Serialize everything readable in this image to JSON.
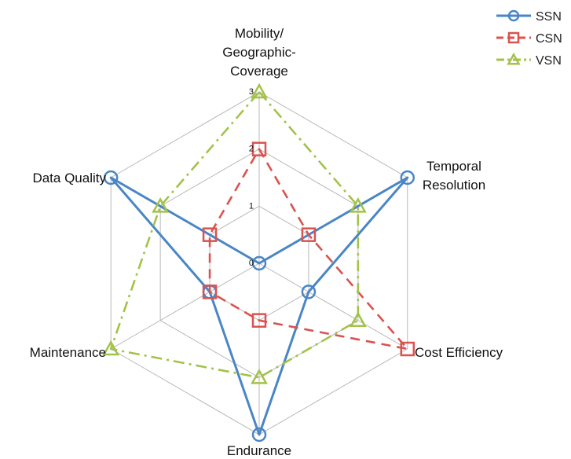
{
  "chart_data": {
    "type": "radar",
    "axes": [
      [
        "Mobility/",
        "Geographic-",
        "Coverage"
      ],
      [
        "Temporal",
        "Resolution"
      ],
      [
        "Cost Efficiency"
      ],
      [
        "Endurance"
      ],
      [
        "Maintenance"
      ],
      [
        "Data Quality"
      ]
    ],
    "range": [
      0,
      3
    ],
    "ticks": [
      "0",
      "1",
      "2",
      "3"
    ],
    "series": [
      {
        "name": "SSN",
        "color": "#4a86c5",
        "marker": "circle",
        "dash": "solid",
        "values": [
          0,
          3,
          1,
          3,
          1,
          3
        ]
      },
      {
        "name": "CSN",
        "color": "#d9534f",
        "marker": "square",
        "dash": "dashed",
        "values": [
          2,
          1,
          3,
          1,
          1,
          1
        ]
      },
      {
        "name": "VSN",
        "color": "#a3c24a",
        "marker": "triangle",
        "dash": "dashdot",
        "values": [
          3,
          2,
          2,
          2,
          3,
          2
        ]
      }
    ],
    "legend_position": "top-right",
    "grid": true
  }
}
